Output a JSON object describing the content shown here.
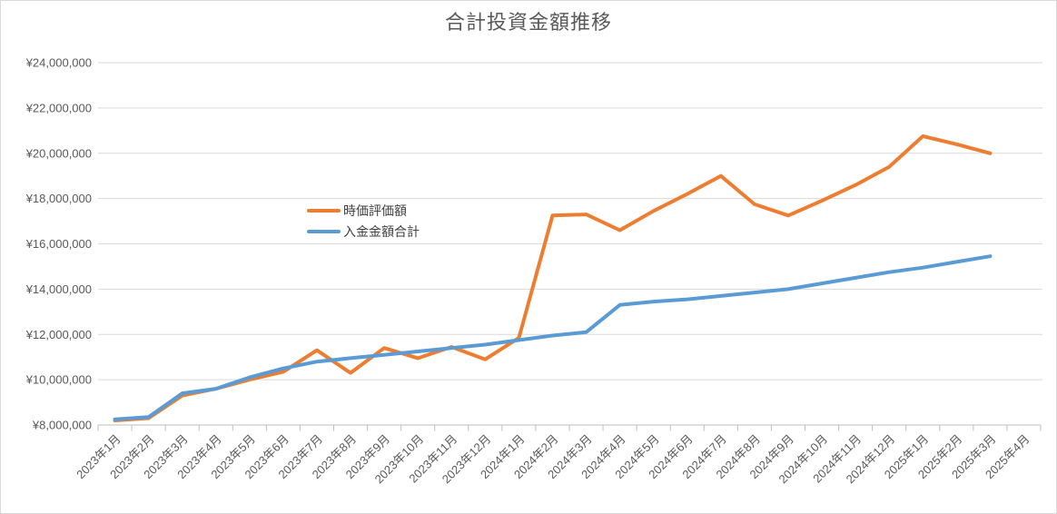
{
  "chart_data": {
    "type": "line",
    "title": "合計投資金額推移",
    "categories": [
      "2023年1月",
      "2023年2月",
      "2023年3月",
      "2023年4月",
      "2023年5月",
      "2023年6月",
      "2023年7月",
      "2023年8月",
      "2023年9月",
      "2023年10月",
      "2023年11月",
      "2023年12月",
      "2024年1月",
      "2024年2月",
      "2024年3月",
      "2024年4月",
      "2024年5月",
      "2024年6月",
      "2024年7月",
      "2024年8月",
      "2024年9月",
      "2024年10月",
      "2024年11月",
      "2024年12月",
      "2025年1月",
      "2025年2月",
      "2025年3月",
      "2025年4月"
    ],
    "series": [
      {
        "name": "時価評価額",
        "color": "#ED7D31",
        "values": [
          8200000,
          8300000,
          9300000,
          9600000,
          10000000,
          10350000,
          11300000,
          10300000,
          11400000,
          10950000,
          11450000,
          10900000,
          11850000,
          17250000,
          17300000,
          16600000,
          17450000,
          18200000,
          19000000,
          17750000,
          17250000,
          17900000,
          18600000,
          19400000,
          20750000,
          20400000,
          20000000,
          null
        ]
      },
      {
        "name": "入金金額合計",
        "color": "#5B9BD5",
        "values": [
          8250000,
          8350000,
          9400000,
          9600000,
          10100000,
          10500000,
          10800000,
          10950000,
          11100000,
          11250000,
          11400000,
          11550000,
          11750000,
          11950000,
          12100000,
          13300000,
          13450000,
          13550000,
          13700000,
          13850000,
          14000000,
          14250000,
          14500000,
          14750000,
          14950000,
          15200000,
          15450000,
          null
        ]
      }
    ],
    "y_axis": {
      "min": 8000000,
      "max": 24000000,
      "step": 2000000,
      "tick_labels": [
        "¥8,000,000",
        "¥10,000,000",
        "¥12,000,000",
        "¥14,000,000",
        "¥16,000,000",
        "¥18,000,000",
        "¥20,000,000",
        "¥22,000,000",
        "¥24,000,000"
      ]
    },
    "x_axis": {
      "label_rotation_deg": 45
    },
    "legend": {
      "position": "inside-left",
      "entries": [
        "時価評価額",
        "入金金額合計"
      ]
    },
    "grid": true,
    "colors": {
      "title_text": "#595959",
      "axis_text": "#595959",
      "gridline": "#d9d9d9",
      "axis_line": "#bfbfbf"
    }
  }
}
